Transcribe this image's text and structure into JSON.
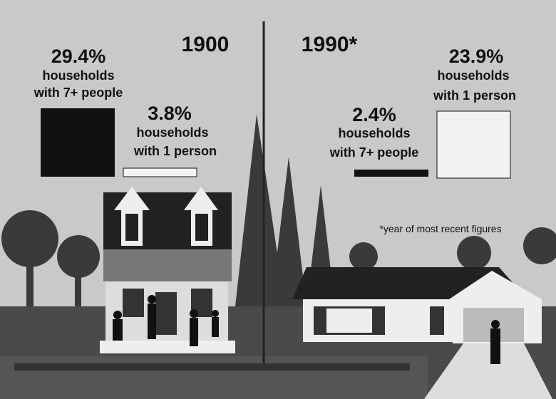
{
  "years": [
    "1900",
    "1990*"
  ],
  "stats": [
    {
      "value": "29.4%",
      "lines": [
        "households",
        "with 7+ people"
      ]
    },
    {
      "value": "3.8%",
      "lines": [
        "households",
        "with 1 person"
      ]
    },
    {
      "value": "2.4%",
      "lines": [
        "households",
        "with 7+ people"
      ]
    },
    {
      "value": "23.9%",
      "lines": [
        "households",
        "with 1 person"
      ]
    }
  ],
  "footnote": "*year of most recent figures"
}
